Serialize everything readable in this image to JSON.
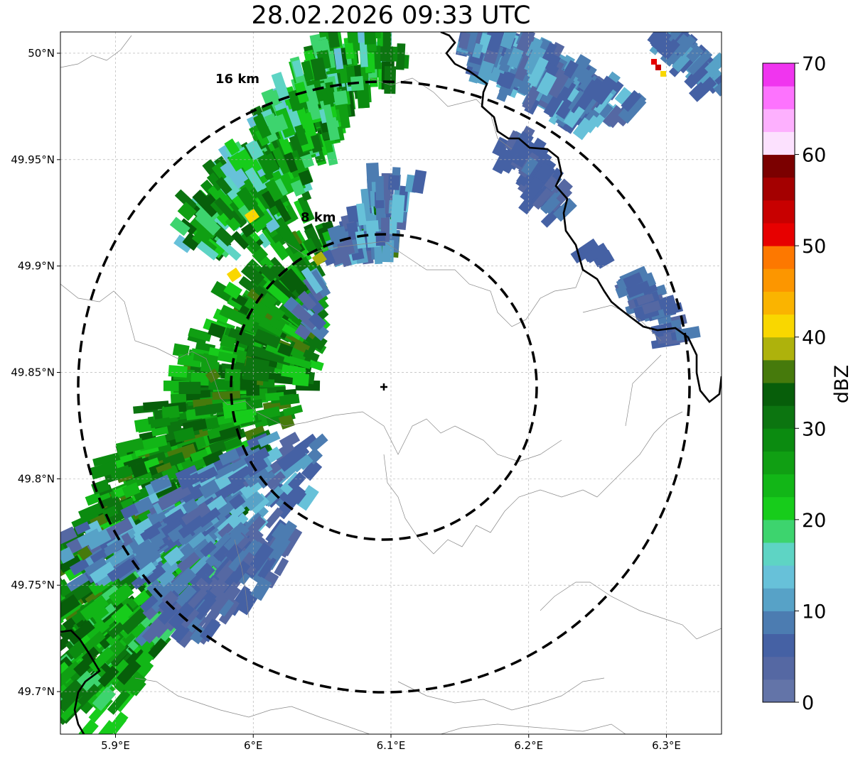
{
  "title": "28.02.2026 09:33 UTC",
  "map": {
    "lon_range": [
      5.86,
      6.34
    ],
    "lat_range": [
      49.68,
      50.01
    ],
    "lon_ticks": [
      {
        "value": 5.9,
        "label": "5.9°E"
      },
      {
        "value": 6.0,
        "label": "6°E"
      },
      {
        "value": 6.1,
        "label": "6.1°E"
      },
      {
        "value": 6.2,
        "label": "6.2°E"
      },
      {
        "value": 6.3,
        "label": "6.3°E"
      }
    ],
    "lat_ticks": [
      {
        "value": 50.0,
        "label": "50°N"
      },
      {
        "value": 49.95,
        "label": "49.95°N"
      },
      {
        "value": 49.9,
        "label": "49.9°N"
      },
      {
        "value": 49.85,
        "label": "49.85°N"
      },
      {
        "value": 49.8,
        "label": "49.8°N"
      },
      {
        "value": 49.75,
        "label": "49.75°N"
      },
      {
        "value": 49.7,
        "label": "49.7°N"
      }
    ],
    "radar_site": {
      "lon": 6.0955,
      "lat": 49.8435
    },
    "range_rings": [
      {
        "label": "8 km",
        "radius_km": 8
      },
      {
        "label": "16 km",
        "radius_km": 16
      }
    ],
    "grid": true
  },
  "colorbar": {
    "label": "dBZ",
    "ticks": [
      0,
      10,
      20,
      30,
      40,
      50,
      60,
      70
    ],
    "colors": [
      "#6374a8",
      "#5568a3",
      "#4561a4",
      "#4c7cb1",
      "#57a2c7",
      "#67c1d9",
      "#5ed4c4",
      "#3dd46e",
      "#17cc1b",
      "#12b617",
      "#109f13",
      "#0b8b10",
      "#0c7510",
      "#075e0a",
      "#467a0c",
      "#aeb20c",
      "#f9d700",
      "#fab400",
      "#fc9600",
      "#fd7800",
      "#e70000",
      "#c80000",
      "#a40000",
      "#7b0000",
      "#fce1fe",
      "#fdb0fe",
      "#fd73fe",
      "#f035ef"
    ]
  }
}
